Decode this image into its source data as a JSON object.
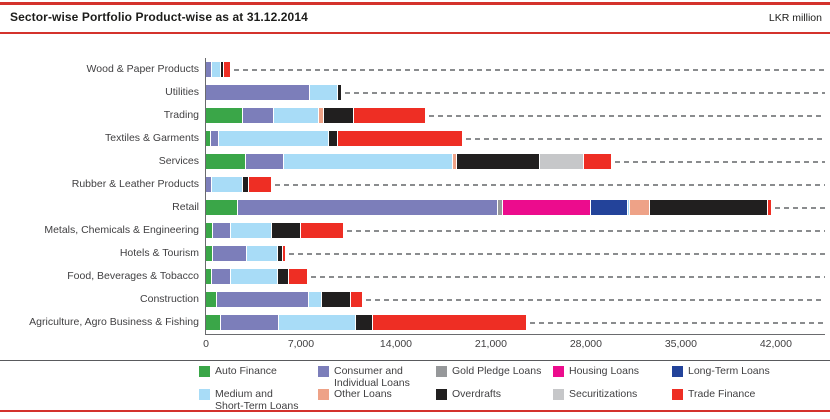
{
  "header": {
    "title": "Sector-wise Portfolio Product-wise as at 31.12.2014",
    "unit_label": "LKR million"
  },
  "colors": {
    "accent_red": "#d4322c",
    "axis_gray": "#6a6b6e",
    "leader_gray": "#8a8c8e",
    "legend_separator": "#595a5d",
    "text_dark": "#1d1d1b",
    "text_gray": "#414042"
  },
  "chart_data": {
    "type": "bar",
    "orientation": "horizontal",
    "stacked": true,
    "unit": "LKR million",
    "title": "Sector-wise Portfolio Product-wise as at 31.12.2014",
    "xlabel": "",
    "ylabel": "",
    "xlim": [
      0,
      42000
    ],
    "grid": "dashed-leader-lines-per-row",
    "legend_position": "bottom",
    "x_ticks": [
      {
        "value": 0,
        "label": "0"
      },
      {
        "value": 7000,
        "label": "7,000"
      },
      {
        "value": 14000,
        "label": "14,000"
      },
      {
        "value": 21000,
        "label": "21,000"
      },
      {
        "value": 28000,
        "label": "28,000"
      },
      {
        "value": 35000,
        "label": "35,000"
      },
      {
        "value": 42000,
        "label": "42,000"
      }
    ],
    "categories": [
      "Wood & Paper Products",
      "Utilities",
      "Trading",
      "Textiles & Garments",
      "Services",
      "Rubber & Leather Products",
      "Retail",
      "Metals, Chemicals & Engineering",
      "Hotels & Tourism",
      "Food, Beverages & Tobacco",
      "Construction",
      "Agriculture, Agro Business & Fishing"
    ],
    "series": [
      {
        "name": "Auto Finance",
        "legend_lines": [
          "Auto Finance"
        ],
        "color": "#3aa648",
        "values": [
          0,
          0,
          2630,
          270,
          2880,
          0,
          2270,
          420,
          420,
          370,
          720,
          1030
        ]
      },
      {
        "name": "Consumer and Individual Loans",
        "legend_lines": [
          "Consumer and",
          "Individual Loans"
        ],
        "color": "#7c7eba",
        "values": [
          370,
          7590,
          2340,
          590,
          2830,
          370,
          19160,
          1350,
          2510,
          1400,
          6830,
          4300
        ]
      },
      {
        "name": "Gold Pledge Loans",
        "legend_lines": [
          "Gold Pledge Loans"
        ],
        "color": "#96989a",
        "values": [
          0,
          0,
          0,
          0,
          0,
          0,
          370,
          0,
          0,
          0,
          0,
          0
        ]
      },
      {
        "name": "Housing Loans",
        "legend_lines": [
          "Housing Loans"
        ],
        "color": "#ec0c8d",
        "values": [
          0,
          0,
          0,
          0,
          0,
          0,
          6510,
          0,
          0,
          0,
          0,
          0
        ]
      },
      {
        "name": "Long-Term Loans",
        "legend_lines": [
          "Long-Term Loans"
        ],
        "color": "#23439a",
        "values": [
          0,
          0,
          0,
          0,
          0,
          0,
          2710,
          0,
          0,
          0,
          0,
          0
        ]
      },
      {
        "name": "Medium and Short-Term Loans",
        "legend_lines": [
          "Medium and",
          "Short-Term Loans"
        ],
        "color": "#a8dcf7",
        "values": [
          660,
          2090,
          3320,
          8160,
          12400,
          2260,
          130,
          3020,
          2290,
          3440,
          940,
          5650
        ]
      },
      {
        "name": "Other Loans",
        "legend_lines": [
          "Other Loans"
        ],
        "color": "#eea287",
        "values": [
          0,
          0,
          370,
          0,
          300,
          0,
          1500,
          0,
          0,
          0,
          0,
          0
        ]
      },
      {
        "name": "Overdrafts",
        "legend_lines": [
          "Overdrafts"
        ],
        "color": "#211f1f",
        "values": [
          220,
          250,
          2210,
          620,
          6100,
          500,
          8680,
          2140,
          370,
          810,
          2140,
          1230
        ]
      },
      {
        "name": "Securitizations",
        "legend_lines": [
          "Securitizations"
        ],
        "color": "#c6c7c9",
        "values": [
          0,
          0,
          0,
          0,
          3270,
          0,
          0,
          0,
          0,
          0,
          0,
          0
        ]
      },
      {
        "name": "Trade Finance",
        "legend_lines": [
          "Trade Finance"
        ],
        "color": "#ee2e24",
        "values": [
          520,
          0,
          5290,
          9210,
          2090,
          1670,
          300,
          3190,
          200,
          1400,
          860,
          11400
        ]
      }
    ]
  }
}
